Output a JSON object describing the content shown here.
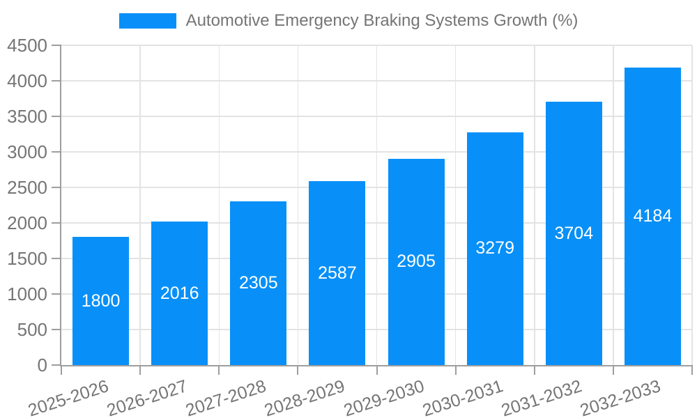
{
  "legend": {
    "label": "Automotive Emergency Braking Systems Growth (%)"
  },
  "chart_data": {
    "type": "bar",
    "title": "Automotive Emergency Braking Systems Growth (%)",
    "categories": [
      "2025-2026",
      "2026-2027",
      "2027-2028",
      "2028-2029",
      "2029-2030",
      "2030-2031",
      "2031-2032",
      "2032-2033"
    ],
    "values": [
      1800,
      2016,
      2305,
      2587,
      2905,
      3279,
      3704,
      4184
    ],
    "value_labels": [
      "1800",
      "2016",
      "2305",
      "2587",
      "2905",
      "3279",
      "3704",
      "4184"
    ],
    "xlabel": "",
    "ylabel": "",
    "ylim": [
      0,
      4500
    ],
    "yticks": [
      0,
      500,
      1000,
      1500,
      2000,
      2500,
      3000,
      3500,
      4000,
      4500
    ],
    "grid": true,
    "legend_position": "top-center",
    "x_tick_rotation_deg": -18,
    "colors": {
      "bar": "#0890f8",
      "value_text": "#ffffff",
      "axis_text": "#757575",
      "gridline": "#e3e3e3",
      "axis_line": "#9e9e9e",
      "background": "#ffffff"
    }
  }
}
